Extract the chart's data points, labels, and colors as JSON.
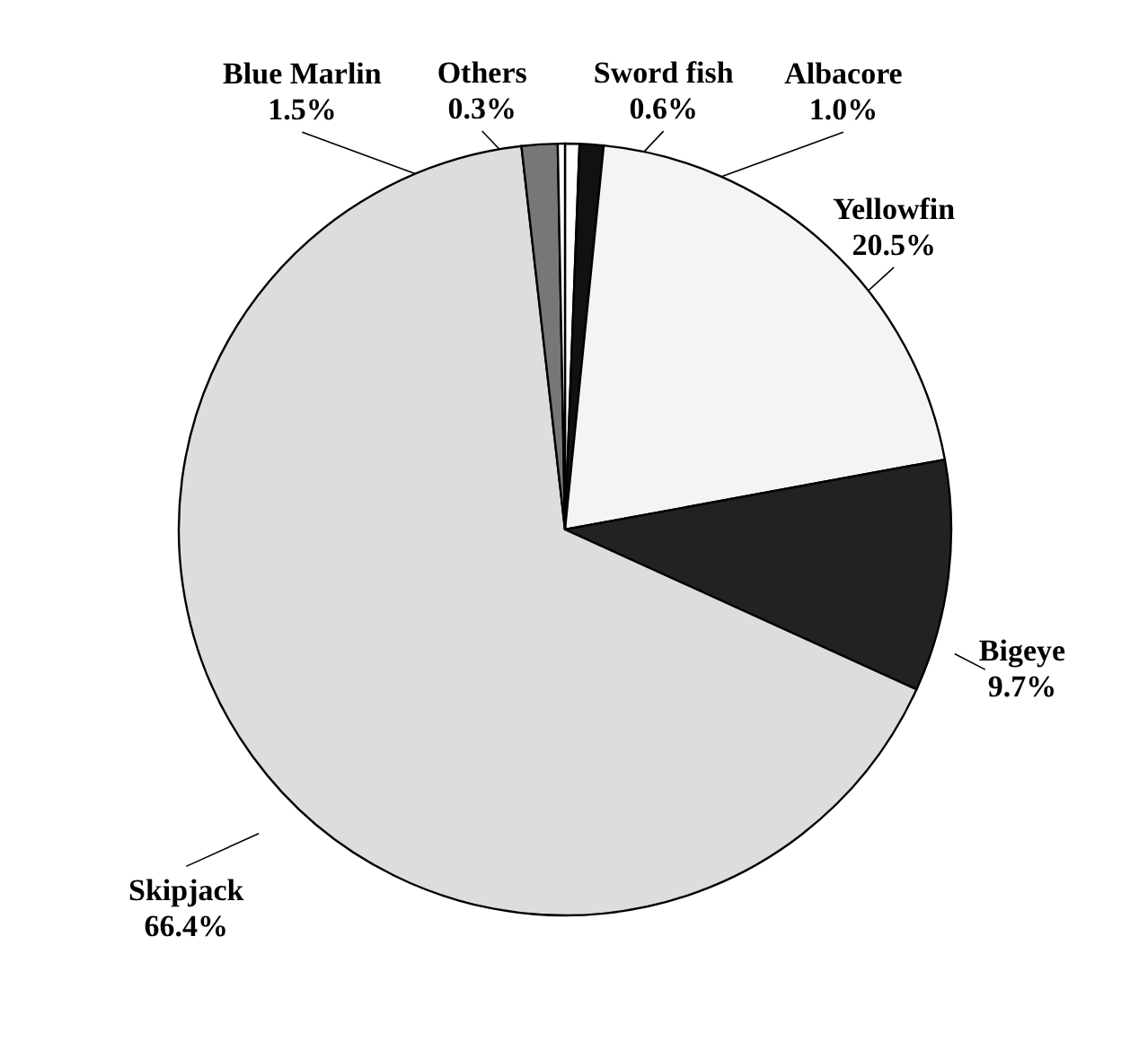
{
  "chart_data": {
    "type": "pie",
    "categories": [
      "Sword fish",
      "Albacore",
      "Yellowfin",
      "Bigeye",
      "Skipjack",
      "Blue Marlin",
      "Others"
    ],
    "values": [
      0.6,
      1.0,
      20.5,
      9.7,
      66.4,
      1.5,
      0.3
    ],
    "colors": [
      "#ffffff",
      "#111111",
      "#f4f4f4",
      "#222222",
      "#dddddd",
      "#777777",
      "#ffffff"
    ],
    "value_labels": [
      "0.6%",
      "1.0%",
      "20.5%",
      "9.7%",
      "66.4%",
      "1.5%",
      "0.3%"
    ],
    "legend": false
  }
}
